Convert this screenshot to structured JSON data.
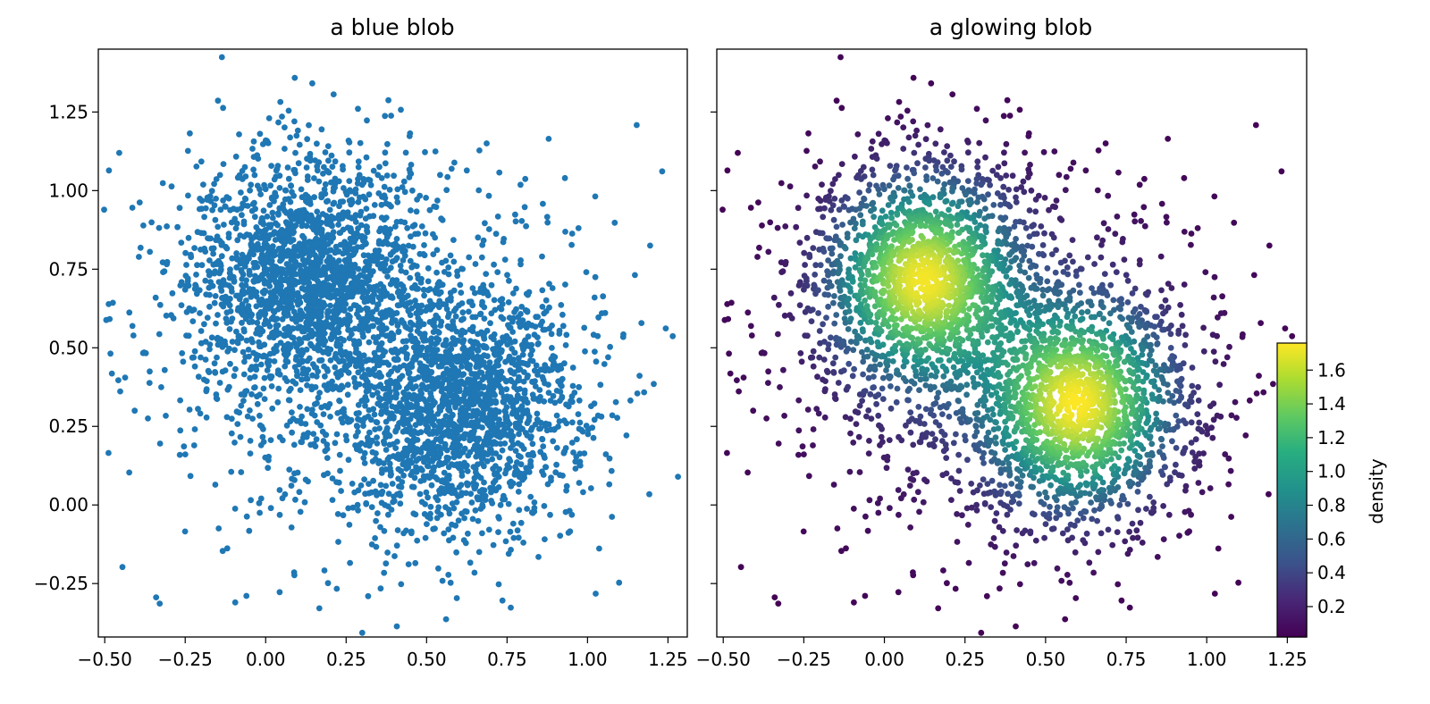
{
  "chart_data": [
    {
      "type": "scatter",
      "title": "a blue blob",
      "xlabel": "",
      "ylabel": "",
      "xlim": [
        -0.52,
        1.31
      ],
      "ylim": [
        -0.42,
        1.45
      ],
      "xticks": [
        "−0.50",
        "−0.25",
        "0.00",
        "0.25",
        "0.50",
        "0.75",
        "1.00",
        "1.25"
      ],
      "yticks": [
        "−0.25",
        "0.00",
        "0.25",
        "0.50",
        "0.75",
        "1.00",
        "1.25"
      ],
      "grid": false,
      "marker_color": "#1f77b4",
      "series": [
        {
          "points_description": "about 10000 points drawn from three overlapping clusters",
          "clusters": [
            {
              "center": [
                0.12,
                0.72
              ],
              "spread": [
                0.17,
                0.19
              ],
              "weight": 0.4
            },
            {
              "center": [
                0.6,
                0.32
              ],
              "spread": [
                0.17,
                0.19
              ],
              "weight": 0.4
            },
            {
              "center": [
                0.35,
                0.45
              ],
              "spread": [
                0.4,
                0.35
              ],
              "weight": 0.2
            }
          ],
          "point_count": 10000
        }
      ]
    },
    {
      "type": "scatter",
      "title": "a glowing blob",
      "xlabel": "",
      "ylabel": "",
      "xlim": [
        -0.52,
        1.31
      ],
      "ylim": [
        -0.42,
        1.45
      ],
      "xticks": [
        "−0.50",
        "−0.25",
        "0.00",
        "0.25",
        "0.50",
        "0.75",
        "1.00",
        "1.25"
      ],
      "yticks": [],
      "grid": false,
      "color_by": "density",
      "colormap": [
        "#440154",
        "#3b528b",
        "#21918c",
        "#5ec962",
        "#fde725"
      ],
      "colorbar": {
        "label": "density",
        "range": [
          0.02,
          1.76
        ],
        "ticks": [
          "0.2",
          "0.4",
          "0.6",
          "0.8",
          "1.0",
          "1.2",
          "1.4",
          "1.6"
        ],
        "placement": "right"
      }
    }
  ]
}
